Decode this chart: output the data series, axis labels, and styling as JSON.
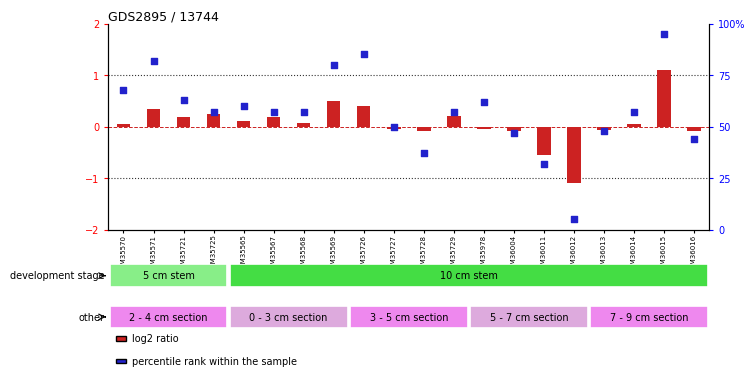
{
  "title": "GDS2895 / 13744",
  "samples": [
    "GSM35570",
    "GSM35571",
    "GSM35721",
    "GSM35725",
    "GSM35565",
    "GSM35567",
    "GSM35568",
    "GSM35569",
    "GSM35726",
    "GSM35727",
    "GSM35728",
    "GSM35729",
    "GSM35978",
    "GSM36004",
    "GSM36011",
    "GSM36012",
    "GSM36013",
    "GSM36014",
    "GSM36015",
    "GSM36016"
  ],
  "log2_ratio": [
    0.05,
    0.35,
    0.18,
    0.25,
    0.1,
    0.18,
    0.08,
    0.5,
    0.4,
    -0.05,
    -0.08,
    0.2,
    -0.05,
    -0.08,
    -0.55,
    -1.1,
    -0.06,
    0.05,
    1.1,
    -0.08
  ],
  "percentile": [
    68,
    82,
    63,
    57,
    60,
    57,
    57,
    80,
    85,
    50,
    37,
    57,
    62,
    47,
    32,
    5,
    48,
    57,
    95,
    44
  ],
  "dev_stage_groups": [
    {
      "label": "5 cm stem",
      "start": 0,
      "end": 4,
      "color": "#88ee88"
    },
    {
      "label": "10 cm stem",
      "start": 4,
      "end": 20,
      "color": "#44dd44"
    }
  ],
  "other_groups": [
    {
      "label": "2 - 4 cm section",
      "start": 0,
      "end": 4,
      "color": "#ee88ee"
    },
    {
      "label": "0 - 3 cm section",
      "start": 4,
      "end": 8,
      "color": "#ddaadd"
    },
    {
      "label": "3 - 5 cm section",
      "start": 8,
      "end": 12,
      "color": "#ee88ee"
    },
    {
      "label": "5 - 7 cm section",
      "start": 12,
      "end": 16,
      "color": "#ddaadd"
    },
    {
      "label": "7 - 9 cm section",
      "start": 16,
      "end": 20,
      "color": "#ee88ee"
    }
  ],
  "ylim": [
    -2.0,
    2.0
  ],
  "y2lim": [
    0,
    100
  ],
  "bar_color": "#cc2222",
  "dot_color": "#2222cc",
  "hline_color": "#cc2222",
  "dotted_line_color": "#333333",
  "bg_color": "#ffffff",
  "plot_bg_color": "#ffffff",
  "yticks": [
    -2,
    -1,
    0,
    1,
    2
  ],
  "y2ticks": [
    0,
    25,
    50,
    75,
    100
  ],
  "dev_stage_label": "development stage",
  "other_label": "other",
  "legend_log2": "log2 ratio",
  "legend_pct": "percentile rank within the sample"
}
